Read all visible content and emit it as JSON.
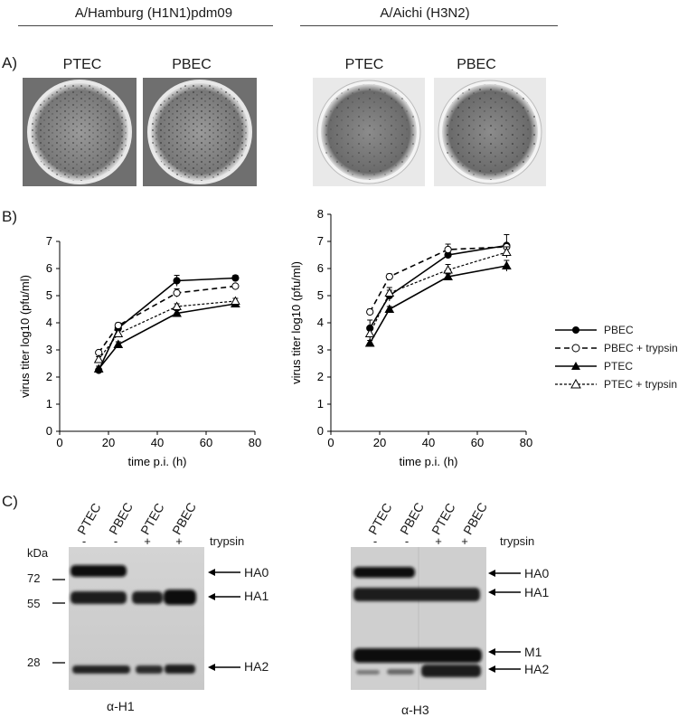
{
  "strains": [
    "A/Hamburg (H1N1)pdm09",
    "A/Aichi (H3N2)"
  ],
  "panel_labels": [
    "A)",
    "B)",
    "C)"
  ],
  "wells": [
    "PTEC",
    "PBEC",
    "PTEC",
    "PBEC"
  ],
  "chart_data": [
    {
      "type": "line",
      "title": "",
      "xlabel": "time p.i. (h)",
      "ylabel": "virus titer log10 (pfu/ml)",
      "xlim": [
        0,
        80
      ],
      "ylim": [
        0,
        7
      ],
      "xticks": [
        0,
        20,
        40,
        60,
        80
      ],
      "yticks": [
        0,
        1,
        2,
        3,
        4,
        5,
        6,
        7
      ],
      "x": [
        16,
        24,
        48,
        72
      ],
      "series": [
        {
          "name": "PBEC",
          "values": [
            2.25,
            3.8,
            5.55,
            5.65
          ],
          "err": [
            0.05,
            0.1,
            0.2,
            0.1
          ]
        },
        {
          "name": "PBEC + trypsin",
          "values": [
            2.9,
            3.9,
            5.1,
            5.35
          ],
          "err": [
            0.05,
            0.1,
            0.15,
            0.05
          ]
        },
        {
          "name": "PTEC",
          "values": [
            2.3,
            3.2,
            4.35,
            4.7
          ],
          "err": [
            0.1,
            0.1,
            0.1,
            0.1
          ]
        },
        {
          "name": "PTEC + trypsin",
          "values": [
            2.65,
            3.6,
            4.6,
            4.8
          ],
          "err": [
            0.1,
            0.1,
            0.1,
            0.1
          ]
        }
      ]
    },
    {
      "type": "line",
      "title": "",
      "xlabel": "time p.i. (h)",
      "ylabel": "virus titer log10 (pfu/ml)",
      "xlim": [
        0,
        80
      ],
      "ylim": [
        0,
        8
      ],
      "xticks": [
        0,
        20,
        40,
        60,
        80
      ],
      "yticks": [
        0,
        1,
        2,
        3,
        4,
        5,
        6,
        7,
        8
      ],
      "x": [
        16,
        24,
        48,
        72
      ],
      "series": [
        {
          "name": "PBEC",
          "values": [
            3.8,
            5.0,
            6.5,
            6.85
          ],
          "err": [
            0.3,
            0.2,
            0.1,
            0.4
          ]
        },
        {
          "name": "PBEC + trypsin",
          "values": [
            4.4,
            5.7,
            6.7,
            6.8
          ],
          "err": [
            0.1,
            0.1,
            0.2,
            0.1
          ]
        },
        {
          "name": "PTEC",
          "values": [
            3.25,
            4.5,
            5.7,
            6.1
          ],
          "err": [
            0.1,
            0.1,
            0.1,
            0.2
          ]
        },
        {
          "name": "PTEC + trypsin",
          "values": [
            3.6,
            5.1,
            5.95,
            6.6
          ],
          "err": [
            0.2,
            0.2,
            0.2,
            0.2
          ]
        }
      ]
    }
  ],
  "legend": [
    "PBEC",
    "PBEC + trypsin",
    "PTEC",
    "PTEC + trypsin"
  ],
  "blots": [
    {
      "lanes": [
        "PTEC",
        "PBEC",
        "PTEC",
        "PBEC"
      ],
      "trypsin": [
        "-",
        "-",
        "+",
        "+"
      ],
      "trypsin_label": "trypsin",
      "kda_label": "kDa",
      "markers": [
        "72",
        "55",
        "28"
      ],
      "bands": [
        "HA0",
        "HA1",
        "HA2"
      ],
      "antibody": "α-H1"
    },
    {
      "lanes": [
        "PTEC",
        "PBEC",
        "PTEC",
        "PBEC"
      ],
      "trypsin": [
        "-",
        "-",
        "+",
        "+"
      ],
      "trypsin_label": "trypsin",
      "bands": [
        "HA0",
        "HA1",
        "M1",
        "HA2"
      ],
      "antibody": "α-H3"
    }
  ]
}
